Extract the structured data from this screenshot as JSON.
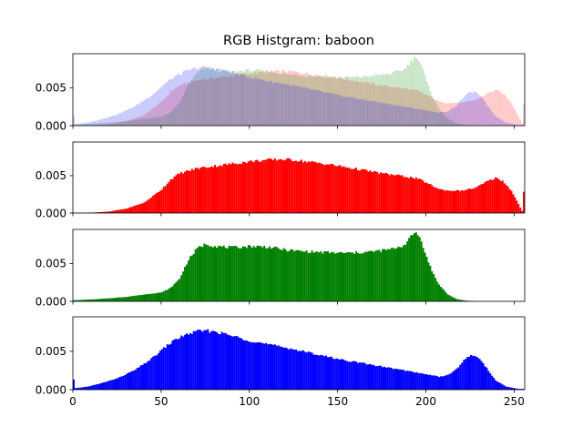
{
  "title": "RGB Histgram: baboon",
  "chart_data": [
    {
      "type": "area",
      "panel": "combined",
      "xlim": [
        0,
        256
      ],
      "ylim": [
        0,
        0.0095
      ],
      "yticks": [
        "0.000",
        "0.005"
      ],
      "series": [
        {
          "color": "#ff0000",
          "alpha": 0.2,
          "knots": [
            [
              0,
              0
            ],
            [
              10,
              5e-05
            ],
            [
              20,
              0.0002
            ],
            [
              30,
              0.0006
            ],
            [
              40,
              0.0014
            ],
            [
              50,
              0.0032
            ],
            [
              55,
              0.0045
            ],
            [
              60,
              0.0053
            ],
            [
              70,
              0.006
            ],
            [
              80,
              0.0063
            ],
            [
              90,
              0.0066
            ],
            [
              100,
              0.0069
            ],
            [
              110,
              0.0071
            ],
            [
              118,
              0.0072
            ],
            [
              125,
              0.0071
            ],
            [
              135,
              0.0068
            ],
            [
              145,
              0.0065
            ],
            [
              155,
              0.0061
            ],
            [
              165,
              0.0057
            ],
            [
              175,
              0.0053
            ],
            [
              185,
              0.005
            ],
            [
              195,
              0.0046
            ],
            [
              202,
              0.0038
            ],
            [
              207,
              0.0032
            ],
            [
              212,
              0.003
            ],
            [
              220,
              0.003
            ],
            [
              228,
              0.0034
            ],
            [
              234,
              0.0042
            ],
            [
              239,
              0.0047
            ],
            [
              243,
              0.0043
            ],
            [
              248,
              0.003
            ],
            [
              252,
              0.0012
            ],
            [
              254,
              0.0003
            ],
            [
              255,
              0.0028
            ]
          ]
        },
        {
          "color": "#008000",
          "alpha": 0.2,
          "knots": [
            [
              0,
              0.00015
            ],
            [
              10,
              0.00025
            ],
            [
              20,
              0.0004
            ],
            [
              30,
              0.0006
            ],
            [
              40,
              0.0009
            ],
            [
              50,
              0.0012
            ],
            [
              55,
              0.0018
            ],
            [
              60,
              0.003
            ],
            [
              65,
              0.0055
            ],
            [
              70,
              0.007
            ],
            [
              75,
              0.0076
            ],
            [
              80,
              0.0073
            ],
            [
              90,
              0.0071
            ],
            [
              100,
              0.0073
            ],
            [
              110,
              0.0072
            ],
            [
              120,
              0.0068
            ],
            [
              130,
              0.0066
            ],
            [
              140,
              0.0065
            ],
            [
              150,
              0.0064
            ],
            [
              160,
              0.0064
            ],
            [
              170,
              0.0066
            ],
            [
              180,
              0.0069
            ],
            [
              187,
              0.0074
            ],
            [
              191,
              0.0085
            ],
            [
              194,
              0.0092
            ],
            [
              197,
              0.008
            ],
            [
              200,
              0.0058
            ],
            [
              203,
              0.004
            ],
            [
              207,
              0.0022
            ],
            [
              212,
              0.0009
            ],
            [
              217,
              0.0003
            ],
            [
              222,
              0.0001
            ],
            [
              230,
              0
            ],
            [
              255,
              0
            ]
          ]
        },
        {
          "color": "#0000ff",
          "alpha": 0.2,
          "knots": [
            [
              0,
              0.0013
            ],
            [
              1,
              0.0002
            ],
            [
              8,
              0.0004
            ],
            [
              15,
              0.0008
            ],
            [
              25,
              0.0015
            ],
            [
              35,
              0.0026
            ],
            [
              45,
              0.0042
            ],
            [
              52,
              0.0056
            ],
            [
              58,
              0.0066
            ],
            [
              65,
              0.0073
            ],
            [
              72,
              0.0077
            ],
            [
              80,
              0.0076
            ],
            [
              90,
              0.007
            ],
            [
              100,
              0.0064
            ],
            [
              110,
              0.0059
            ],
            [
              120,
              0.0055
            ],
            [
              130,
              0.005
            ],
            [
              140,
              0.0045
            ],
            [
              150,
              0.004
            ],
            [
              160,
              0.0036
            ],
            [
              170,
              0.0032
            ],
            [
              180,
              0.0028
            ],
            [
              190,
              0.0024
            ],
            [
              200,
              0.002
            ],
            [
              207,
              0.0017
            ],
            [
              212,
              0.0019
            ],
            [
              217,
              0.0027
            ],
            [
              221,
              0.0038
            ],
            [
              225,
              0.0045
            ],
            [
              229,
              0.0043
            ],
            [
              234,
              0.0028
            ],
            [
              239,
              0.0012
            ],
            [
              245,
              0.0004
            ],
            [
              252,
              0.0001
            ],
            [
              255,
              0.0001
            ]
          ]
        }
      ]
    },
    {
      "type": "bar",
      "panel": "red",
      "xlim": [
        0,
        256
      ],
      "ylim": [
        0,
        0.0095
      ],
      "yticks": [
        "0.000",
        "0.005"
      ],
      "series": [
        {
          "color": "#ff0000",
          "alpha": 1,
          "knots": [
            [
              0,
              0
            ],
            [
              10,
              5e-05
            ],
            [
              20,
              0.0002
            ],
            [
              30,
              0.0006
            ],
            [
              40,
              0.0014
            ],
            [
              50,
              0.0032
            ],
            [
              55,
              0.0045
            ],
            [
              60,
              0.0053
            ],
            [
              70,
              0.006
            ],
            [
              80,
              0.0063
            ],
            [
              90,
              0.0066
            ],
            [
              100,
              0.0069
            ],
            [
              110,
              0.0071
            ],
            [
              118,
              0.0072
            ],
            [
              125,
              0.0071
            ],
            [
              135,
              0.0068
            ],
            [
              145,
              0.0065
            ],
            [
              155,
              0.0061
            ],
            [
              165,
              0.0057
            ],
            [
              175,
              0.0053
            ],
            [
              185,
              0.005
            ],
            [
              195,
              0.0046
            ],
            [
              202,
              0.0038
            ],
            [
              207,
              0.0032
            ],
            [
              212,
              0.003
            ],
            [
              220,
              0.003
            ],
            [
              228,
              0.0034
            ],
            [
              234,
              0.0042
            ],
            [
              239,
              0.0047
            ],
            [
              243,
              0.0043
            ],
            [
              248,
              0.003
            ],
            [
              252,
              0.0012
            ],
            [
              254,
              0.0003
            ],
            [
              255,
              0.0028
            ]
          ]
        }
      ]
    },
    {
      "type": "bar",
      "panel": "green",
      "xlim": [
        0,
        256
      ],
      "ylim": [
        0,
        0.0095
      ],
      "yticks": [
        "0.000",
        "0.005"
      ],
      "series": [
        {
          "color": "#008000",
          "alpha": 1,
          "knots": [
            [
              0,
              0.00015
            ],
            [
              10,
              0.00025
            ],
            [
              20,
              0.0004
            ],
            [
              30,
              0.0006
            ],
            [
              40,
              0.0009
            ],
            [
              50,
              0.0012
            ],
            [
              55,
              0.0018
            ],
            [
              60,
              0.003
            ],
            [
              65,
              0.0055
            ],
            [
              70,
              0.007
            ],
            [
              75,
              0.0076
            ],
            [
              80,
              0.0073
            ],
            [
              90,
              0.0071
            ],
            [
              100,
              0.0073
            ],
            [
              110,
              0.0072
            ],
            [
              120,
              0.0068
            ],
            [
              130,
              0.0066
            ],
            [
              140,
              0.0065
            ],
            [
              150,
              0.0064
            ],
            [
              160,
              0.0064
            ],
            [
              170,
              0.0066
            ],
            [
              180,
              0.0069
            ],
            [
              187,
              0.0074
            ],
            [
              191,
              0.0085
            ],
            [
              194,
              0.0092
            ],
            [
              197,
              0.008
            ],
            [
              200,
              0.0058
            ],
            [
              203,
              0.004
            ],
            [
              207,
              0.0022
            ],
            [
              212,
              0.0009
            ],
            [
              217,
              0.0003
            ],
            [
              222,
              0.0001
            ],
            [
              230,
              0
            ],
            [
              255,
              0
            ]
          ]
        }
      ]
    },
    {
      "type": "bar",
      "panel": "blue",
      "xlim": [
        0,
        256
      ],
      "ylim": [
        0,
        0.0095
      ],
      "yticks": [
        "0.000",
        "0.005"
      ],
      "xticks": [
        "0",
        "50",
        "100",
        "150",
        "200",
        "250"
      ],
      "series": [
        {
          "color": "#0000ff",
          "alpha": 1,
          "knots": [
            [
              0,
              0.0013
            ],
            [
              1,
              0.0002
            ],
            [
              8,
              0.0004
            ],
            [
              15,
              0.0008
            ],
            [
              25,
              0.0015
            ],
            [
              35,
              0.0026
            ],
            [
              45,
              0.0042
            ],
            [
              52,
              0.0056
            ],
            [
              58,
              0.0066
            ],
            [
              65,
              0.0073
            ],
            [
              72,
              0.0077
            ],
            [
              80,
              0.0076
            ],
            [
              90,
              0.007
            ],
            [
              100,
              0.0064
            ],
            [
              110,
              0.0059
            ],
            [
              120,
              0.0055
            ],
            [
              130,
              0.005
            ],
            [
              140,
              0.0045
            ],
            [
              150,
              0.004
            ],
            [
              160,
              0.0036
            ],
            [
              170,
              0.0032
            ],
            [
              180,
              0.0028
            ],
            [
              190,
              0.0024
            ],
            [
              200,
              0.002
            ],
            [
              207,
              0.0017
            ],
            [
              212,
              0.0019
            ],
            [
              217,
              0.0027
            ],
            [
              221,
              0.0038
            ],
            [
              225,
              0.0045
            ],
            [
              229,
              0.0043
            ],
            [
              234,
              0.0028
            ],
            [
              239,
              0.0012
            ],
            [
              245,
              0.0004
            ],
            [
              252,
              0.0001
            ],
            [
              255,
              0.0001
            ]
          ]
        }
      ]
    }
  ]
}
